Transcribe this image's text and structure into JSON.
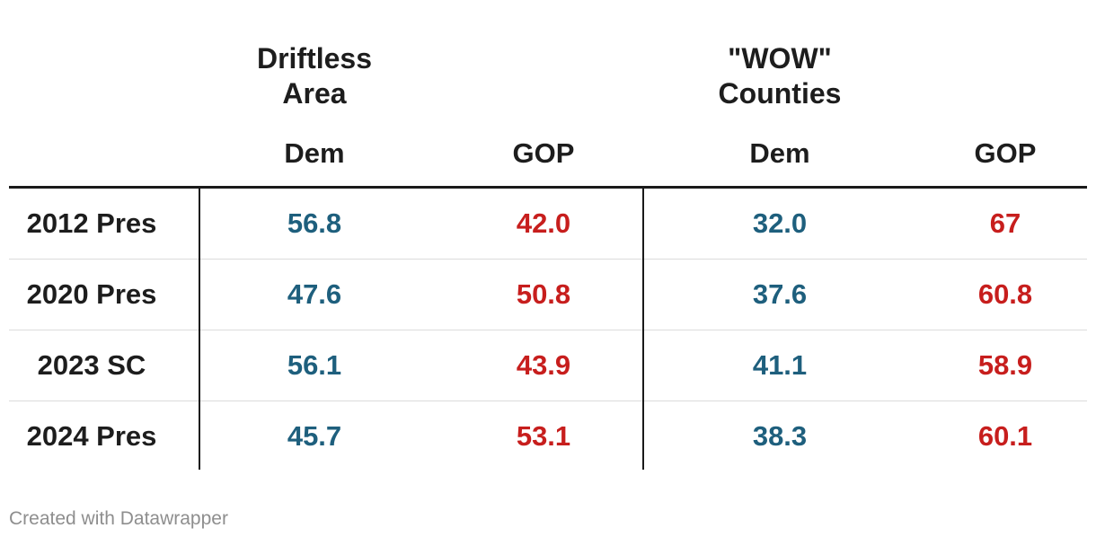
{
  "chart_data": {
    "type": "table",
    "column_groups": [
      "Driftless Area",
      "\"WOW\" Counties"
    ],
    "columns": [
      "Dem",
      "GOP",
      "Dem",
      "GOP"
    ],
    "rows": [
      {
        "label": "2012 Pres",
        "values": [
          "56.8",
          "42.0",
          "32.0",
          "67"
        ]
      },
      {
        "label": "2020 Pres",
        "values": [
          "47.6",
          "50.8",
          "37.6",
          "60.8"
        ]
      },
      {
        "label": "2023 SC",
        "values": [
          "56.1",
          "43.9",
          "41.1",
          "58.9"
        ]
      },
      {
        "label": "2024 Pres",
        "values": [
          "45.7",
          "53.1",
          "38.3",
          "60.1"
        ]
      }
    ],
    "value_colors": {
      "dem": "#1e5f7d",
      "gop": "#c71e1d"
    },
    "layout_hints": {
      "header_rule_color": "#1a1a1a",
      "divider_color": "#1a1a1a",
      "row_separator_color": "#dcdcdc"
    }
  },
  "footer": {
    "credit": "Created with Datawrapper"
  }
}
